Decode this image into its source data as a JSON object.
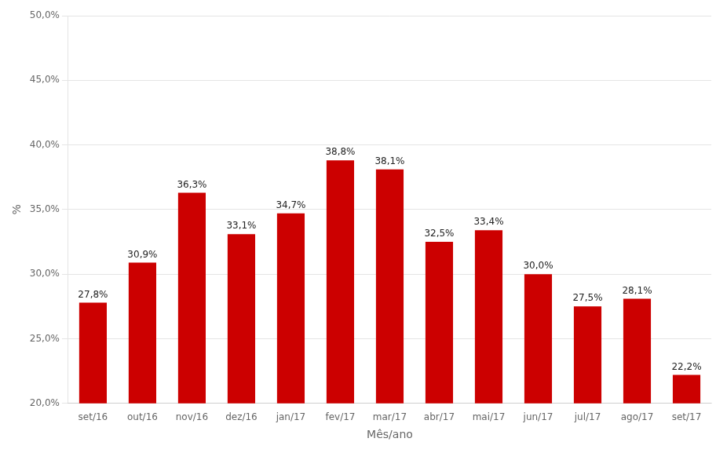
{
  "chart_data": {
    "type": "bar",
    "categories": [
      "set/16",
      "out/16",
      "nov/16",
      "dez/16",
      "jan/17",
      "fev/17",
      "mar/17",
      "abr/17",
      "mai/17",
      "jun/17",
      "jul/17",
      "ago/17",
      "set/17"
    ],
    "values": [
      27.8,
      30.9,
      36.3,
      33.1,
      34.7,
      38.8,
      38.1,
      32.5,
      33.4,
      30.0,
      27.5,
      28.1,
      22.2
    ],
    "value_labels": [
      "27,8%",
      "30,9%",
      "36,3%",
      "33,1%",
      "34,7%",
      "38,8%",
      "38,1%",
      "32,5%",
      "33,4%",
      "30,0%",
      "27,5%",
      "28,1%",
      "22,2%"
    ],
    "data_labels": true,
    "color": "#CC0000",
    "xlabel": "Mês/ano",
    "ylabel": "%",
    "ylim": [
      20.0,
      50.0
    ],
    "yticks": [
      {
        "value": 20.0,
        "label": "20,0%"
      },
      {
        "value": 25.0,
        "label": "25,0%"
      },
      {
        "value": 30.0,
        "label": "30,0%"
      },
      {
        "value": 35.0,
        "label": "35,0%"
      },
      {
        "value": 40.0,
        "label": "40,0%"
      },
      {
        "value": 45.0,
        "label": "45,0%"
      },
      {
        "value": 50.0,
        "label": "50,0%"
      }
    ],
    "grid": true
  }
}
